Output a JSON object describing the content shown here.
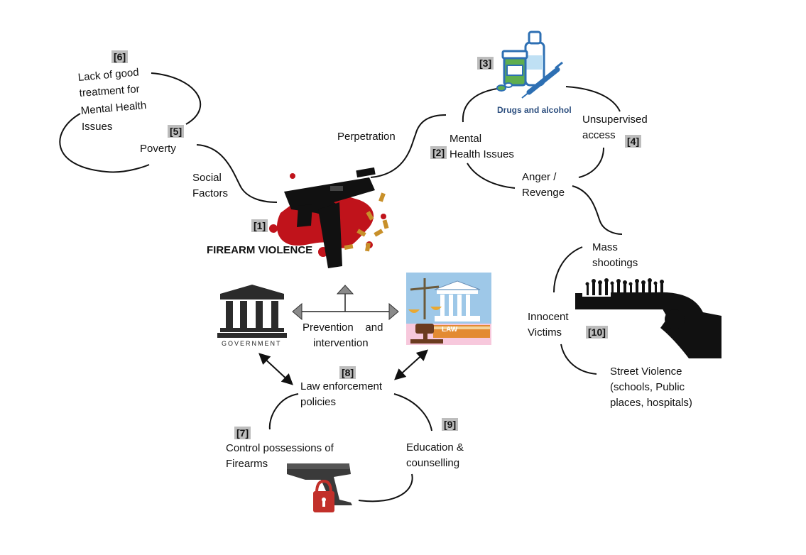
{
  "nodes": {
    "n1": {
      "badge": "[1]",
      "label": "FIREARM VIOLENCE"
    },
    "n2": {
      "badge": "[2]",
      "line1": "Mental",
      "line2": "Health Issues"
    },
    "n3": {
      "badge": "[3]",
      "icon_caption": "Drugs and alcohol"
    },
    "n4": {
      "badge": "[4]",
      "line1": "Unsupervised",
      "line2": "access"
    },
    "n5": {
      "badge": "[5]",
      "label": "Poverty"
    },
    "n6": {
      "badge": "[6]",
      "line1": "Lack of good",
      "line2": "treatment for",
      "line3": "Mental Health",
      "line4": "Issues"
    },
    "n7": {
      "badge": "[7]",
      "line1": "Control possessions of",
      "line2": "Firearms"
    },
    "n8": {
      "badge": "[8]",
      "line1": "Law enforcement",
      "line2": "policies"
    },
    "n9": {
      "badge": "[9]",
      "line1": "Education &",
      "line2": "counselling"
    },
    "n10": {
      "badge": "[10]",
      "line1": "Innocent",
      "line2": "Victims"
    }
  },
  "labels": {
    "perpetration": "Perpetration",
    "social_factors_1": "Social",
    "social_factors_2": "Factors",
    "anger_1": "Anger /",
    "anger_2": "Revenge",
    "mass_1": "Mass",
    "mass_2": "shootings",
    "street_1": "Street Violence",
    "street_2": "(schools, Public",
    "street_3": "places, hospitals)",
    "prevention_1": "Prevention    and",
    "prevention_2": "intervention",
    "government": "GOVERNMENT",
    "law": "LAW"
  },
  "icons": [
    "uzi-gun-icon",
    "drugs-alcohol-icon",
    "government-building-icon",
    "law-justice-icon",
    "locked-pistol-icon",
    "revolver-crowd-icon"
  ],
  "colors": {
    "badge": "#bdbdbd",
    "blood": "#c0131b",
    "drug_blue": "#2d6fb3",
    "drug_green": "#5fae4f",
    "lock_red": "#c2302a",
    "law_blue": "#9ec8e8",
    "law_pink": "#f7c8dc",
    "arrow_grey": "#8a8a8a"
  }
}
